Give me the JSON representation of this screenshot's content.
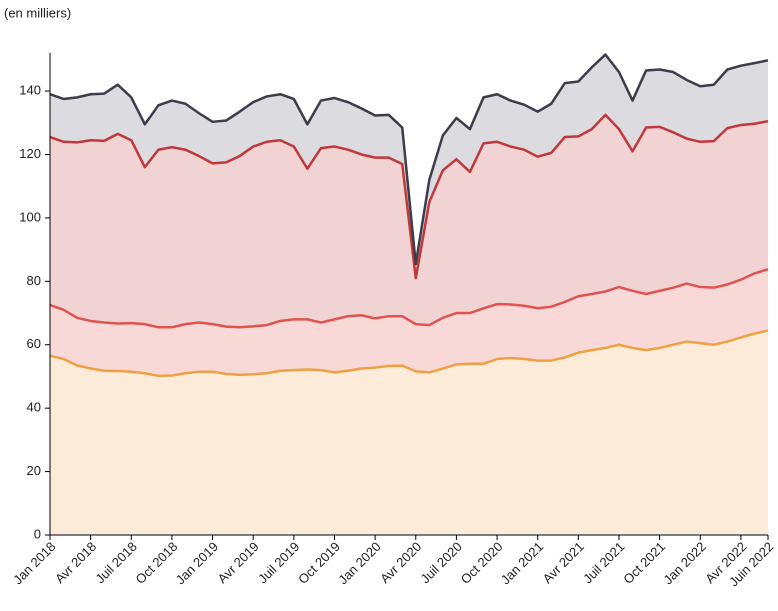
{
  "chart_data": {
    "type": "stacked-area",
    "subtitle": "(en milliers)",
    "categories": [
      "Jan 2018",
      null,
      null,
      "Avr 2018",
      null,
      null,
      "Juil 2018",
      null,
      null,
      "Oct 2018",
      null,
      null,
      "Jan 2019",
      null,
      null,
      "Avr 2019",
      null,
      null,
      "Juil 2019",
      null,
      null,
      "Oct 2019",
      null,
      null,
      "Jan 2020",
      null,
      null,
      "Avr 2020",
      null,
      null,
      "Juil 2020",
      null,
      null,
      "Oct 2020",
      null,
      null,
      "Jan 2021",
      null,
      null,
      "Avr 2021",
      null,
      null,
      "Juil 2021",
      null,
      null,
      "Oct 2021",
      null,
      null,
      "Jan 2022",
      null,
      null,
      "Avr 2022",
      null,
      "Juin 2022"
    ],
    "series": [
      {
        "color": "#eea043",
        "fill": "#fcebd8",
        "values": [
          56.5,
          55.5,
          53.5,
          52.5,
          51.8,
          51.7,
          51.5,
          51,
          50.2,
          50.3,
          51,
          51.5,
          51.5,
          50.8,
          50.5,
          50.7,
          51,
          51.8,
          52,
          52.2,
          52,
          51.3,
          51.8,
          52.5,
          52.8,
          53.3,
          53.4,
          51.6,
          51.3,
          52.5,
          53.8,
          54,
          54,
          55.5,
          55.8,
          55.5,
          55,
          55,
          56,
          57.5,
          58.3,
          59,
          60,
          59,
          58.3,
          59,
          60,
          61,
          60.5,
          60,
          61,
          62.3,
          63.5,
          64.5
        ]
      },
      {
        "color": "#e0534f",
        "fill": "#f9d9d8",
        "values": [
          16,
          15.5,
          15,
          15,
          15.2,
          15,
          15.3,
          15.5,
          15.3,
          15.2,
          15.5,
          15.5,
          15,
          14.9,
          15,
          15.1,
          15.2,
          15.7,
          16,
          15.8,
          15,
          16.7,
          17.2,
          16.8,
          15.5,
          15.7,
          15.6,
          14.9,
          14.9,
          16,
          16.2,
          16,
          17.5,
          17.3,
          16.9,
          16.8,
          16.5,
          17,
          17.5,
          17.8,
          17.7,
          17.8,
          18.2,
          18,
          17.7,
          18,
          18,
          18.3,
          17.7,
          18,
          18,
          18.2,
          19,
          19.3
        ]
      },
      {
        "color": "#c2373a",
        "fill": "#f1d3d3",
        "values": [
          53,
          53,
          55.3,
          57,
          57.3,
          59.8,
          57.7,
          49.5,
          56,
          56.8,
          55,
          52.5,
          50.7,
          51.8,
          54,
          56.7,
          57.8,
          57,
          54.5,
          47.5,
          55,
          54.5,
          52.5,
          50.7,
          50.7,
          50,
          48,
          14.5,
          38.8,
          46.5,
          48.5,
          44.5,
          52,
          51.2,
          49.8,
          49.2,
          47.8,
          48.5,
          52,
          50.4,
          52,
          55.7,
          49.8,
          44,
          52.5,
          51.7,
          49,
          45.7,
          45.8,
          46.2,
          49.3,
          48.8,
          47.2,
          46.7
        ]
      },
      {
        "color": "#3c3c4a",
        "fill": "#dcdbe0",
        "values": [
          13.5,
          13.5,
          14.2,
          14.5,
          14.9,
          15.5,
          13.5,
          13.5,
          14,
          14.7,
          14.5,
          13.5,
          13.1,
          13.2,
          14,
          14,
          14.3,
          14.5,
          15,
          14,
          15,
          15.3,
          15,
          14.5,
          13.3,
          13.5,
          11.5,
          4.5,
          7,
          11,
          13,
          13.5,
          14.5,
          15,
          14.5,
          14.2,
          14.2,
          15.5,
          17,
          17.3,
          19.5,
          19,
          18,
          16,
          18,
          18.1,
          19,
          18.5,
          17.5,
          17.8,
          18.5,
          18.7,
          19.1,
          19.2
        ]
      }
    ],
    "ylim": [
      0,
      152
    ],
    "yticks": [
      0,
      20,
      40,
      60,
      80,
      100,
      120,
      140
    ],
    "grid": false
  }
}
